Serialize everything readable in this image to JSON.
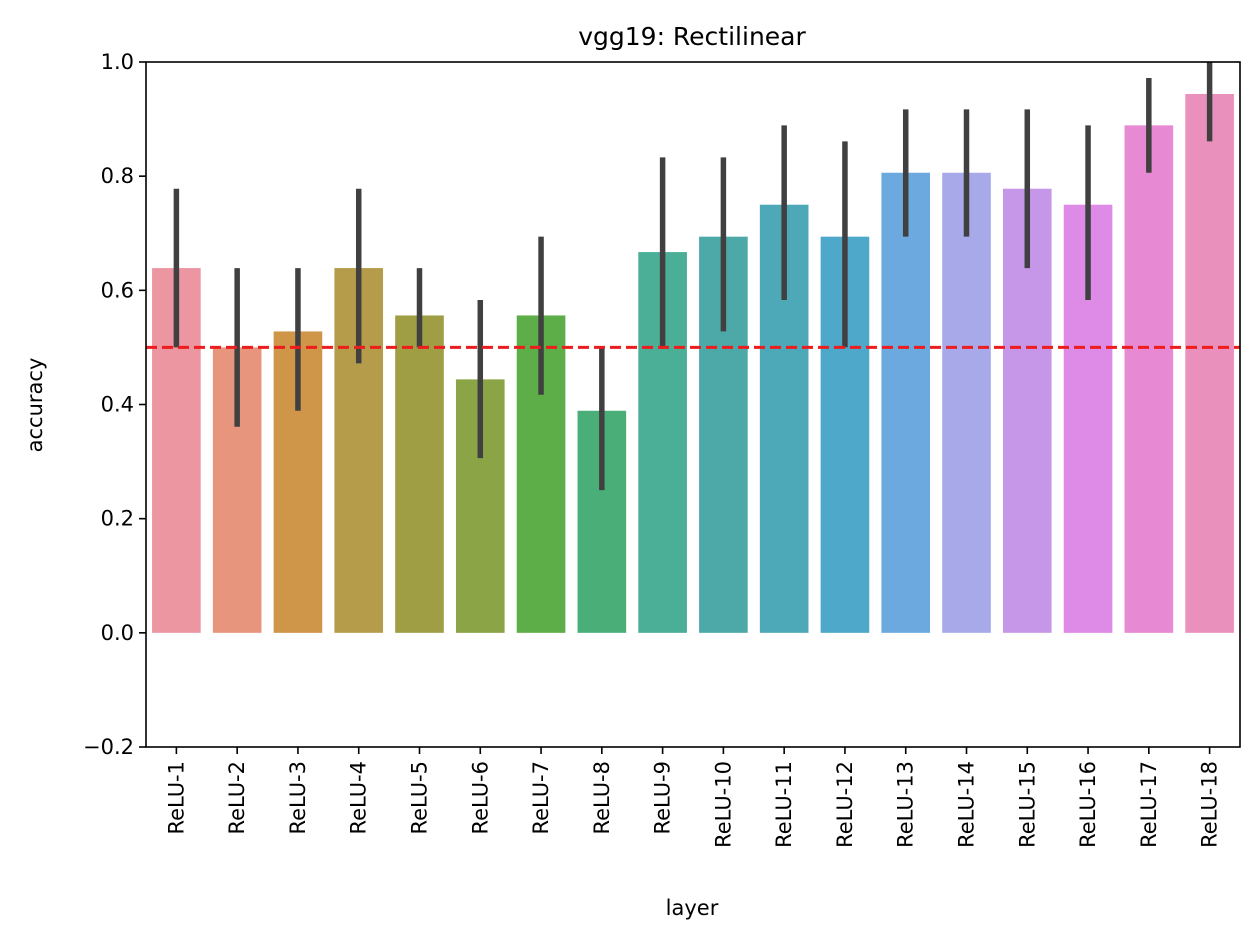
{
  "chart_data": {
    "type": "bar",
    "title": "vgg19: Rectilinear",
    "xlabel": "layer",
    "ylabel": "accuracy",
    "ylim": [
      -0.2,
      1.0
    ],
    "yticks": [
      -0.2,
      0.0,
      0.2,
      0.4,
      0.6,
      0.8,
      1.0
    ],
    "ytick_labels": [
      "−0.2",
      "0.0",
      "0.2",
      "0.4",
      "0.6",
      "0.8",
      "1.0"
    ],
    "grid": false,
    "legend": "none",
    "categories": [
      "ReLU-1",
      "ReLU-2",
      "ReLU-3",
      "ReLU-4",
      "ReLU-5",
      "ReLU-6",
      "ReLU-7",
      "ReLU-8",
      "ReLU-9",
      "ReLU-10",
      "ReLU-11",
      "ReLU-12",
      "ReLU-13",
      "ReLU-14",
      "ReLU-15",
      "ReLU-16",
      "ReLU-17",
      "ReLU-18"
    ],
    "values": [
      0.639,
      0.5,
      0.528,
      0.639,
      0.556,
      0.444,
      0.556,
      0.389,
      0.667,
      0.694,
      0.75,
      0.694,
      0.806,
      0.806,
      0.778,
      0.75,
      0.889,
      0.944
    ],
    "error_low": [
      0.5,
      0.361,
      0.389,
      0.472,
      0.5,
      0.306,
      0.417,
      0.25,
      0.5,
      0.528,
      0.583,
      0.5,
      0.694,
      0.694,
      0.639,
      0.583,
      0.806,
      0.861
    ],
    "error_high": [
      0.778,
      0.639,
      0.639,
      0.778,
      0.639,
      0.583,
      0.694,
      0.5,
      0.833,
      0.833,
      0.889,
      0.861,
      0.917,
      0.917,
      0.917,
      0.889,
      0.972,
      1.0
    ],
    "bar_colors": [
      "#eb96a1",
      "#e8957d",
      "#cf9549",
      "#b59c4b",
      "#a09e45",
      "#8aa446",
      "#5dad48",
      "#4aae78",
      "#4bae97",
      "#4ca9a8",
      "#4da8b7",
      "#4ea8c9",
      "#6ba9df",
      "#a8a9e9",
      "#c697e8",
      "#de8ae7",
      "#e78ad3",
      "#e991bc"
    ],
    "reference_line": {
      "y": 0.5,
      "color": "#ee1c1c",
      "style": "dashed"
    },
    "error_bar_color": "#404040"
  }
}
